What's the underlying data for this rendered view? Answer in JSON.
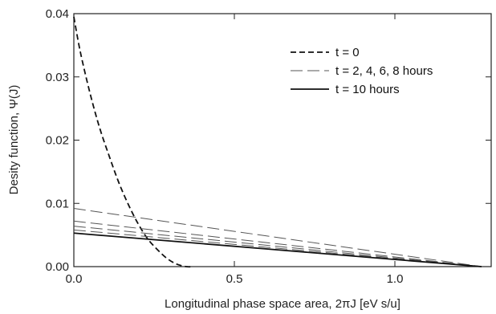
{
  "chart_data": {
    "type": "line",
    "xlabel": "Longitudinal phase space area, 2πJ [eV s/u]",
    "ylabel": "Desity function, Ψ(J)",
    "xlim": [
      0,
      1.3
    ],
    "ylim": [
      0,
      0.04
    ],
    "x_ticks": [
      {
        "value": 0.0,
        "label": "0.0"
      },
      {
        "value": 0.5,
        "label": "0.5"
      },
      {
        "value": 1.0,
        "label": "1.0"
      }
    ],
    "y_ticks": [
      {
        "value": 0.0,
        "label": "0.00"
      },
      {
        "value": 0.01,
        "label": "0.01"
      },
      {
        "value": 0.02,
        "label": "0.02"
      },
      {
        "value": 0.03,
        "label": "0.03"
      },
      {
        "value": 0.04,
        "label": "0.04"
      }
    ],
    "legend_position": "top-right",
    "series": [
      {
        "name": "t = 0",
        "style": "short-dash",
        "color": "#111111",
        "x": [
          0,
          0.02,
          0.05,
          0.08,
          0.11,
          0.14,
          0.17,
          0.2,
          0.23,
          0.26,
          0.29,
          0.32,
          0.35,
          0.37
        ],
        "y": [
          0.0395,
          0.034,
          0.0275,
          0.022,
          0.0175,
          0.0133,
          0.0098,
          0.0068,
          0.0044,
          0.0027,
          0.0013,
          0.0004,
          0.0,
          0.0
        ]
      },
      {
        "name": "t = 2, 4, 6, 8 hours",
        "style": "long-dash",
        "color": "#555555",
        "lines": [
          {
            "x": [
              0,
              1.27
            ],
            "y": [
              0.0092,
              0.0
            ]
          },
          {
            "x": [
              0,
              1.27
            ],
            "y": [
              0.0072,
              0.0
            ]
          },
          {
            "x": [
              0,
              1.27
            ],
            "y": [
              0.0064,
              0.0
            ]
          },
          {
            "x": [
              0,
              1.27
            ],
            "y": [
              0.0058,
              0.0
            ]
          }
        ]
      },
      {
        "name": "t = 10 hours",
        "style": "solid",
        "color": "#111111",
        "x": [
          0,
          1.27
        ],
        "y": [
          0.0053,
          0.0
        ]
      }
    ]
  }
}
